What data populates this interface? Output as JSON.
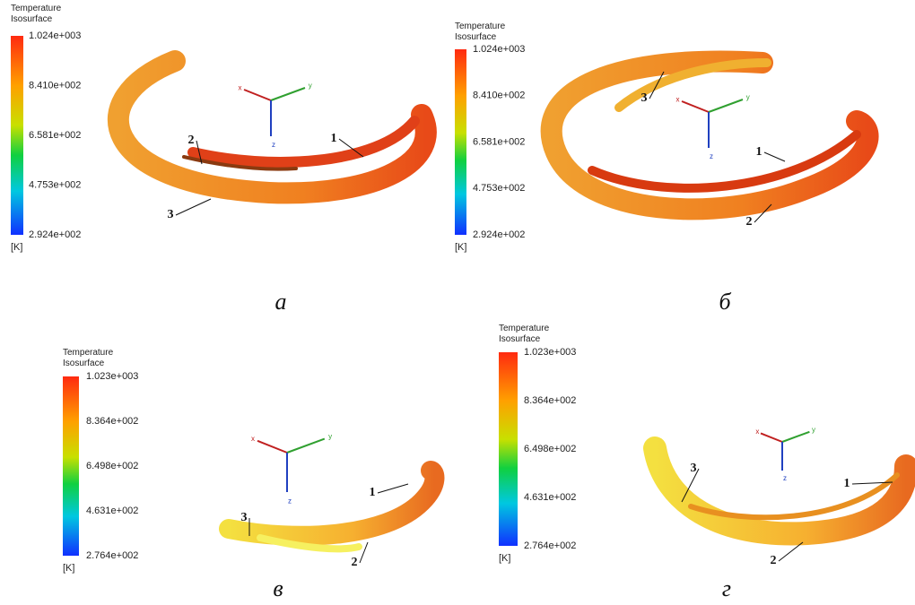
{
  "panels": [
    {
      "caption": "а",
      "legend": {
        "title": [
          "Temperature",
          "Isosurface"
        ],
        "ticks": [
          "1.024e+003",
          "8.410e+002",
          "6.581e+002",
          "4.753e+002",
          "2.924e+002"
        ],
        "unit": "[K]"
      },
      "axes": [
        "x",
        "y",
        "z"
      ],
      "callouts": [
        "1",
        "2",
        "3"
      ]
    },
    {
      "caption": "б",
      "legend": {
        "title": [
          "Temperature",
          "Isosurface"
        ],
        "ticks": [
          "1.024e+003",
          "8.410e+002",
          "6.581e+002",
          "4.753e+002",
          "2.924e+002"
        ],
        "unit": "[K]"
      },
      "axes": [
        "x",
        "y",
        "z"
      ],
      "callouts": [
        "1",
        "2",
        "3"
      ]
    },
    {
      "caption": "в",
      "legend": {
        "title": [
          "Temperature",
          "Isosurface"
        ],
        "ticks": [
          "1.023e+003",
          "8.364e+002",
          "6.498e+002",
          "4.631e+002",
          "2.764e+002"
        ],
        "unit": "[K]"
      },
      "axes": [
        "x",
        "y",
        "z"
      ],
      "callouts": [
        "1",
        "2",
        "3"
      ]
    },
    {
      "caption": "г",
      "legend": {
        "title": [
          "Temperature",
          "Isosurface"
        ],
        "ticks": [
          "1.023e+003",
          "8.364e+002",
          "6.498e+002",
          "4.631e+002",
          "2.764e+002"
        ],
        "unit": "[K]"
      },
      "axes": [
        "x",
        "y",
        "z"
      ],
      "callouts": [
        "1",
        "2",
        "3"
      ]
    }
  ]
}
